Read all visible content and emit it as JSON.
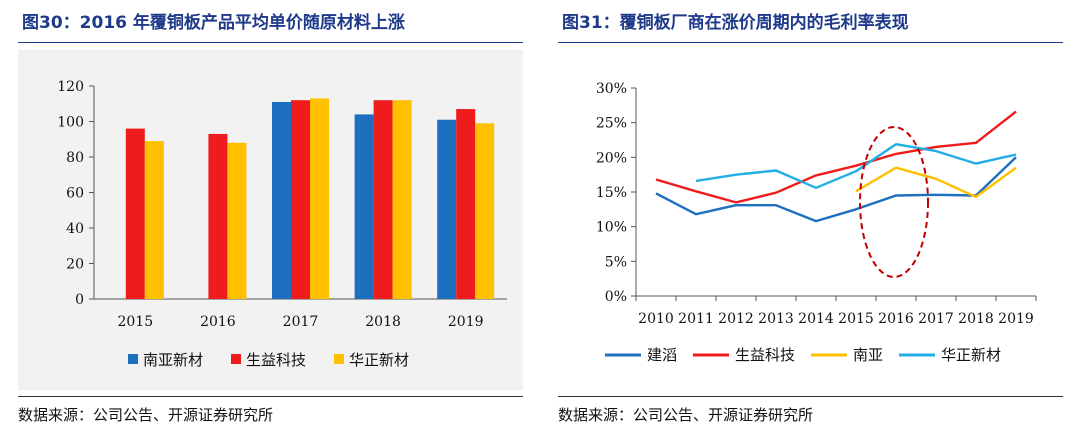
{
  "left": {
    "title": "图30：2016 年覆铜板产品平均单价随原材料上涨",
    "source": "数据来源：公司公告、开源证券研究所",
    "chart_data": {
      "type": "bar",
      "categories": [
        "2015",
        "2016",
        "2017",
        "2018",
        "2019"
      ],
      "series": [
        {
          "name": "南亚新材",
          "color": "#1f6fc0",
          "values": [
            null,
            null,
            111,
            104,
            101
          ]
        },
        {
          "name": "生益科技",
          "color": "#ee1c1c",
          "values": [
            96,
            93,
            112,
            112,
            107
          ]
        },
        {
          "name": "华正新材",
          "color": "#ffc000",
          "values": [
            89,
            88,
            113,
            112,
            99
          ]
        }
      ],
      "ylim": [
        0,
        120
      ],
      "yticks": [
        "0",
        "20",
        "40",
        "60",
        "80",
        "100",
        "120"
      ],
      "legend": "bottom"
    }
  },
  "right": {
    "title": "图31：覆铜板厂商在涨价周期内的毛利率表现",
    "source": "数据来源：公司公告、开源证券研究所",
    "chart_data": {
      "type": "line",
      "x": [
        "2010",
        "2011",
        "2012",
        "2013",
        "2014",
        "2015",
        "2016",
        "2017",
        "2018",
        "2019"
      ],
      "series": [
        {
          "name": "建滔",
          "color": "#1f6fc0",
          "values": [
            14.8,
            11.8,
            13.1,
            13.1,
            10.8,
            12.5,
            14.5,
            14.6,
            14.5,
            20.0
          ]
        },
        {
          "name": "生益科技",
          "color": "#ee1c1c",
          "values": [
            16.8,
            15.1,
            13.5,
            14.9,
            17.4,
            18.8,
            20.5,
            21.5,
            22.1,
            26.6
          ]
        },
        {
          "name": "南亚",
          "color": "#ffc000",
          "values": [
            null,
            null,
            null,
            null,
            null,
            15.1,
            18.5,
            16.9,
            14.3,
            18.5
          ]
        },
        {
          "name": "华正新材",
          "color": "#22aee5",
          "values": [
            null,
            16.6,
            17.5,
            18.1,
            15.6,
            18.0,
            21.9,
            20.9,
            19.1,
            20.4
          ]
        }
      ],
      "ylim": [
        0,
        30
      ],
      "yticks": [
        "0%",
        "5%",
        "10%",
        "15%",
        "20%",
        "25%",
        "30%"
      ],
      "legend": "bottom",
      "annotation": {
        "shape": "dashed-ellipse",
        "color": "#c00000",
        "around": "2015-2017"
      }
    }
  }
}
